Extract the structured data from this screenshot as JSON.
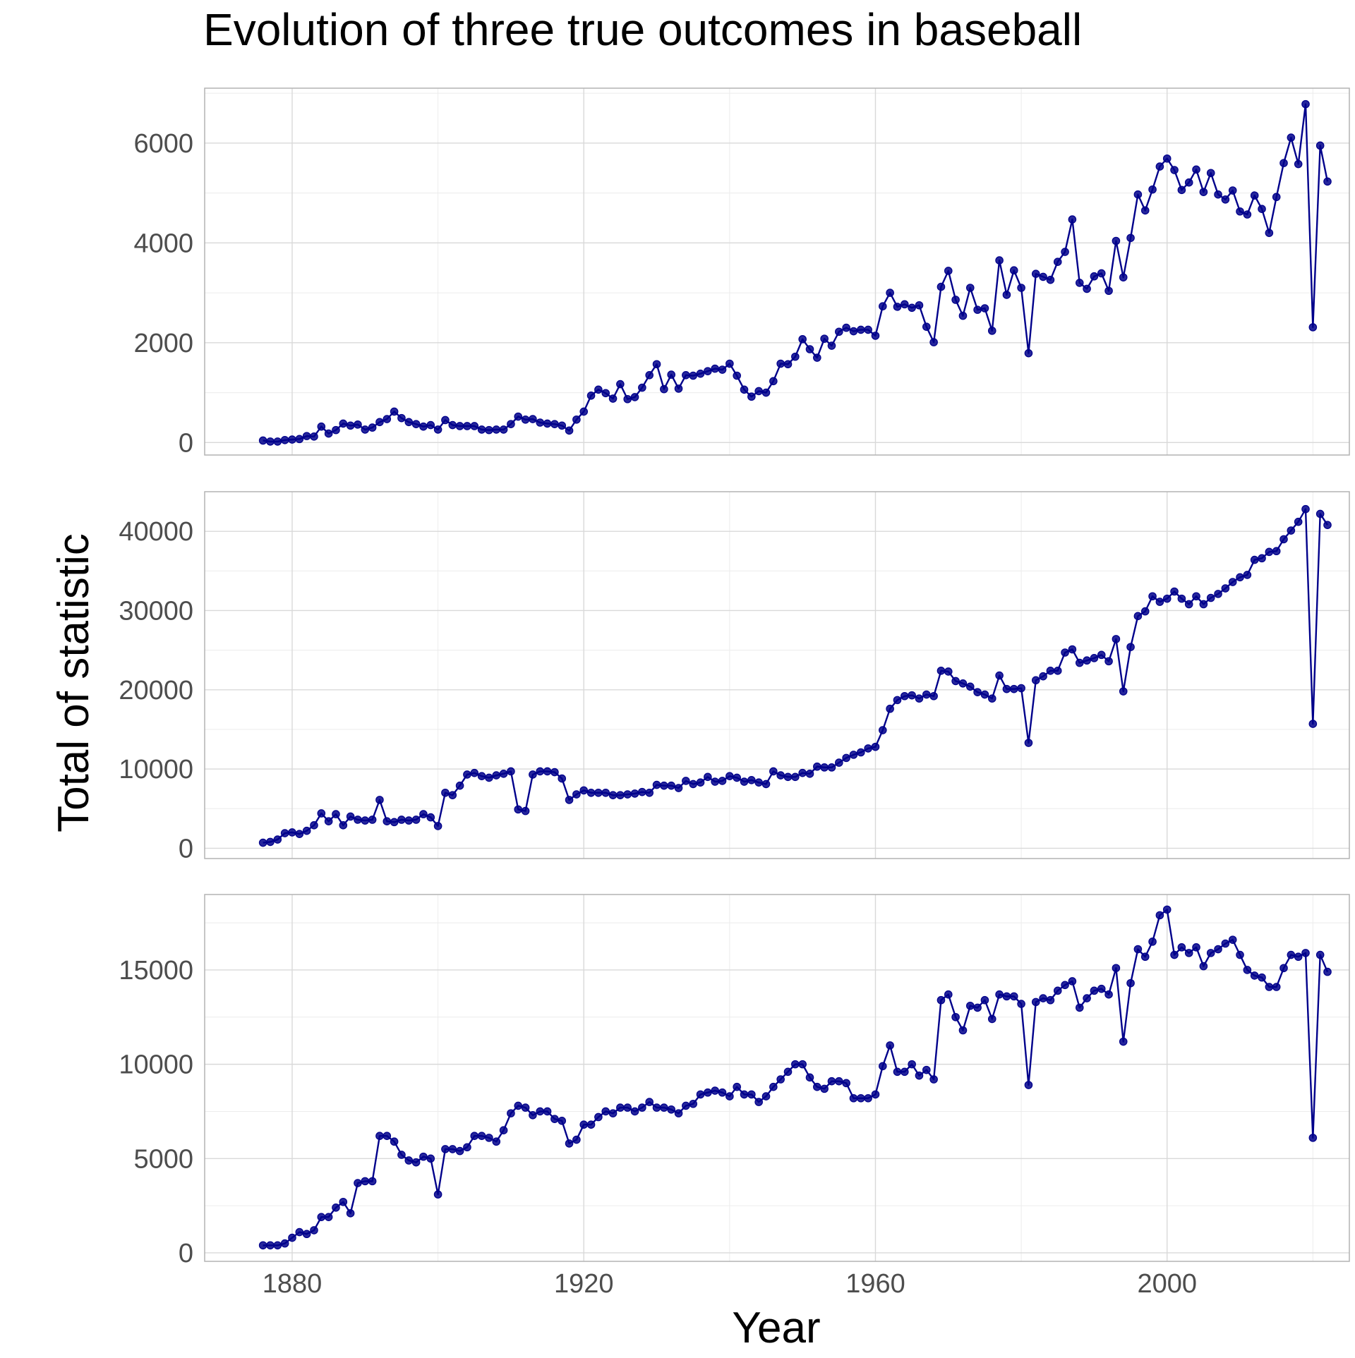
{
  "chart_data": {
    "type": "line",
    "title": "Evolution of three true outcomes in baseball",
    "xlabel": "Year",
    "ylabel": "Total of statistic",
    "xlim": [
      1868,
      2025
    ],
    "x_ticks": [
      1880,
      1920,
      1960,
      2000
    ],
    "grid": true,
    "legend": "none",
    "colors": {
      "series": "#00008B",
      "grid": "#d9d9d9",
      "border": "#b3b3b3",
      "text": "#4d4d4d"
    },
    "panels": [
      {
        "ylim": [
          -250,
          7100
        ],
        "y_ticks": [
          0,
          2000,
          4000,
          6000
        ],
        "x": [
          1876,
          1877,
          1878,
          1879,
          1880,
          1881,
          1882,
          1883,
          1884,
          1885,
          1886,
          1887,
          1888,
          1889,
          1890,
          1891,
          1892,
          1893,
          1894,
          1895,
          1896,
          1897,
          1898,
          1899,
          1900,
          1901,
          1902,
          1903,
          1904,
          1905,
          1906,
          1907,
          1908,
          1909,
          1910,
          1911,
          1912,
          1913,
          1914,
          1915,
          1916,
          1917,
          1918,
          1919,
          1920,
          1921,
          1922,
          1923,
          1924,
          1925,
          1926,
          1927,
          1928,
          1929,
          1930,
          1931,
          1932,
          1933,
          1934,
          1935,
          1936,
          1937,
          1938,
          1939,
          1940,
          1941,
          1942,
          1943,
          1944,
          1945,
          1946,
          1947,
          1948,
          1949,
          1950,
          1951,
          1952,
          1953,
          1954,
          1955,
          1956,
          1957,
          1958,
          1959,
          1960,
          1961,
          1962,
          1963,
          1964,
          1965,
          1966,
          1967,
          1968,
          1969,
          1970,
          1971,
          1972,
          1973,
          1974,
          1975,
          1976,
          1977,
          1978,
          1979,
          1980,
          1981,
          1982,
          1983,
          1984,
          1985,
          1986,
          1987,
          1988,
          1989,
          1990,
          1991,
          1992,
          1993,
          1994,
          1995,
          1996,
          1997,
          1998,
          1999,
          2000,
          2001,
          2002,
          2003,
          2004,
          2005,
          2006,
          2007,
          2008,
          2009,
          2010,
          2011,
          2012,
          2013,
          2014,
          2015,
          2016,
          2017,
          2018,
          2019,
          2020,
          2021,
          2022
        ],
        "values": [
          40,
          20,
          20,
          50,
          60,
          70,
          130,
          120,
          320,
          180,
          250,
          380,
          340,
          360,
          260,
          300,
          410,
          470,
          620,
          490,
          410,
          370,
          320,
          350,
          260,
          450,
          350,
          330,
          330,
          330,
          260,
          250,
          260,
          260,
          370,
          520,
          460,
          470,
          400,
          380,
          370,
          340,
          240,
          460,
          620,
          940,
          1060,
          990,
          880,
          1170,
          870,
          910,
          1100,
          1350,
          1570,
          1070,
          1360,
          1080,
          1350,
          1340,
          1380,
          1430,
          1480,
          1460,
          1580,
          1340,
          1060,
          920,
          1030,
          1000,
          1230,
          1580,
          1570,
          1720,
          2070,
          1870,
          1700,
          2080,
          1940,
          2220,
          2300,
          2230,
          2260,
          2260,
          2140,
          2730,
          3000,
          2720,
          2770,
          2700,
          2750,
          2320,
          2010,
          3120,
          3440,
          2860,
          2540,
          3100,
          2660,
          2690,
          2240,
          3650,
          2960,
          3450,
          3100,
          1790,
          3380,
          3320,
          3260,
          3620,
          3820,
          4470,
          3200,
          3080,
          3330,
          3390,
          3040,
          4040,
          3310,
          4100,
          4970,
          4650,
          5070,
          5530,
          5690,
          5460,
          5060,
          5210,
          5470,
          5020,
          5400,
          4970,
          4870,
          5050,
          4630,
          4570,
          4950,
          4680,
          4200,
          4920,
          5600,
          6110,
          5580,
          6780,
          2310,
          5950,
          5230
        ]
      },
      {
        "ylim": [
          -1300,
          45000
        ],
        "y_ticks": [
          0,
          10000,
          20000,
          30000,
          40000
        ],
        "x": [
          1876,
          1877,
          1878,
          1879,
          1880,
          1881,
          1882,
          1883,
          1884,
          1885,
          1886,
          1887,
          1888,
          1889,
          1890,
          1891,
          1892,
          1893,
          1894,
          1895,
          1896,
          1897,
          1898,
          1899,
          1900,
          1901,
          1902,
          1903,
          1904,
          1905,
          1906,
          1907,
          1908,
          1909,
          1910,
          1911,
          1912,
          1913,
          1914,
          1915,
          1916,
          1917,
          1918,
          1919,
          1920,
          1921,
          1922,
          1923,
          1924,
          1925,
          1926,
          1927,
          1928,
          1929,
          1930,
          1931,
          1932,
          1933,
          1934,
          1935,
          1936,
          1937,
          1938,
          1939,
          1940,
          1941,
          1942,
          1943,
          1944,
          1945,
          1946,
          1947,
          1948,
          1949,
          1950,
          1951,
          1952,
          1953,
          1954,
          1955,
          1956,
          1957,
          1958,
          1959,
          1960,
          1961,
          1962,
          1963,
          1964,
          1965,
          1966,
          1967,
          1968,
          1969,
          1970,
          1971,
          1972,
          1973,
          1974,
          1975,
          1976,
          1977,
          1978,
          1979,
          1980,
          1981,
          1982,
          1983,
          1984,
          1985,
          1986,
          1987,
          1988,
          1989,
          1990,
          1991,
          1992,
          1993,
          1994,
          1995,
          1996,
          1997,
          1998,
          1999,
          2000,
          2001,
          2002,
          2003,
          2004,
          2005,
          2006,
          2007,
          2008,
          2009,
          2010,
          2011,
          2012,
          2013,
          2014,
          2015,
          2016,
          2017,
          2018,
          2019,
          2020,
          2021,
          2022
        ],
        "values": [
          700,
          800,
          1100,
          1900,
          2000,
          1800,
          2200,
          2900,
          4400,
          3400,
          4300,
          2900,
          4000,
          3600,
          3500,
          3600,
          6100,
          3400,
          3300,
          3600,
          3500,
          3600,
          4300,
          3900,
          2800,
          7000,
          6700,
          7900,
          9300,
          9500,
          9100,
          8900,
          9200,
          9400,
          9700,
          4900,
          4700,
          9300,
          9700,
          9700,
          9600,
          8800,
          6100,
          6800,
          7300,
          7000,
          7000,
          7000,
          6700,
          6700,
          6800,
          6900,
          7100,
          7000,
          8000,
          7900,
          7900,
          7600,
          8500,
          8100,
          8300,
          9000,
          8400,
          8500,
          9100,
          8900,
          8400,
          8600,
          8300,
          8100,
          9700,
          9200,
          9000,
          9000,
          9500,
          9400,
          10300,
          10200,
          10200,
          10800,
          11400,
          11800,
          12100,
          12600,
          12800,
          14900,
          17600,
          18700,
          19200,
          19300,
          18900,
          19400,
          19200,
          22400,
          22300,
          21100,
          20800,
          20400,
          19700,
          19400,
          18900,
          21800,
          20100,
          20100,
          20200,
          13300,
          21200,
          21700,
          22400,
          22400,
          24700,
          25100,
          23400,
          23700,
          24000,
          24400,
          23600,
          26400,
          19800,
          25400,
          29300,
          29900,
          31800,
          31100,
          31500,
          32400,
          31500,
          30800,
          31800,
          30800,
          31600,
          32100,
          32800,
          33600,
          34200,
          34500,
          36400,
          36600,
          37400,
          37500,
          39000,
          40100,
          41200,
          42800,
          15700,
          42200,
          40800
        ]
      },
      {
        "ylim": [
          -450,
          19000
        ],
        "y_ticks": [
          0,
          5000,
          10000,
          15000
        ],
        "x": [
          1876,
          1877,
          1878,
          1879,
          1880,
          1881,
          1882,
          1883,
          1884,
          1885,
          1886,
          1887,
          1888,
          1889,
          1890,
          1891,
          1892,
          1893,
          1894,
          1895,
          1896,
          1897,
          1898,
          1899,
          1900,
          1901,
          1902,
          1903,
          1904,
          1905,
          1906,
          1907,
          1908,
          1909,
          1910,
          1911,
          1912,
          1913,
          1914,
          1915,
          1916,
          1917,
          1918,
          1919,
          1920,
          1921,
          1922,
          1923,
          1924,
          1925,
          1926,
          1927,
          1928,
          1929,
          1930,
          1931,
          1932,
          1933,
          1934,
          1935,
          1936,
          1937,
          1938,
          1939,
          1940,
          1941,
          1942,
          1943,
          1944,
          1945,
          1946,
          1947,
          1948,
          1949,
          1950,
          1951,
          1952,
          1953,
          1954,
          1955,
          1956,
          1957,
          1958,
          1959,
          1960,
          1961,
          1962,
          1963,
          1964,
          1965,
          1966,
          1967,
          1968,
          1969,
          1970,
          1971,
          1972,
          1973,
          1974,
          1975,
          1976,
          1977,
          1978,
          1979,
          1980,
          1981,
          1982,
          1983,
          1984,
          1985,
          1986,
          1987,
          1988,
          1989,
          1990,
          1991,
          1992,
          1993,
          1994,
          1995,
          1996,
          1997,
          1998,
          1999,
          2000,
          2001,
          2002,
          2003,
          2004,
          2005,
          2006,
          2007,
          2008,
          2009,
          2010,
          2011,
          2012,
          2013,
          2014,
          2015,
          2016,
          2017,
          2018,
          2019,
          2020,
          2021,
          2022
        ],
        "values": [
          400,
          400,
          400,
          500,
          800,
          1100,
          1000,
          1200,
          1900,
          1900,
          2400,
          2700,
          2100,
          3700,
          3800,
          3800,
          6200,
          6200,
          5900,
          5200,
          4900,
          4800,
          5100,
          5000,
          3100,
          5500,
          5500,
          5400,
          5600,
          6200,
          6200,
          6100,
          5900,
          6500,
          7400,
          7800,
          7700,
          7300,
          7500,
          7500,
          7100,
          7000,
          5800,
          6000,
          6800,
          6800,
          7200,
          7500,
          7400,
          7700,
          7700,
          7500,
          7700,
          8000,
          7700,
          7700,
          7600,
          7400,
          7800,
          7900,
          8400,
          8500,
          8600,
          8500,
          8300,
          8800,
          8400,
          8400,
          8000,
          8300,
          8800,
          9200,
          9600,
          10000,
          10000,
          9300,
          8800,
          8700,
          9100,
          9100,
          9000,
          8200,
          8200,
          8200,
          8400,
          9900,
          11000,
          9600,
          9600,
          10000,
          9400,
          9700,
          9200,
          13400,
          13700,
          12500,
          11800,
          13100,
          13000,
          13400,
          12400,
          13700,
          13600,
          13600,
          13200,
          8900,
          13300,
          13500,
          13400,
          13900,
          14200,
          14400,
          13000,
          13500,
          13900,
          14000,
          13700,
          15100,
          11200,
          14300,
          16100,
          15700,
          16500,
          17900,
          18200,
          15800,
          16200,
          15900,
          16200,
          15200,
          15900,
          16100,
          16400,
          16600,
          15800,
          15000,
          14700,
          14600,
          14100,
          14100,
          15100,
          15800,
          15700,
          15900,
          6100,
          15800,
          14900
        ]
      }
    ]
  }
}
